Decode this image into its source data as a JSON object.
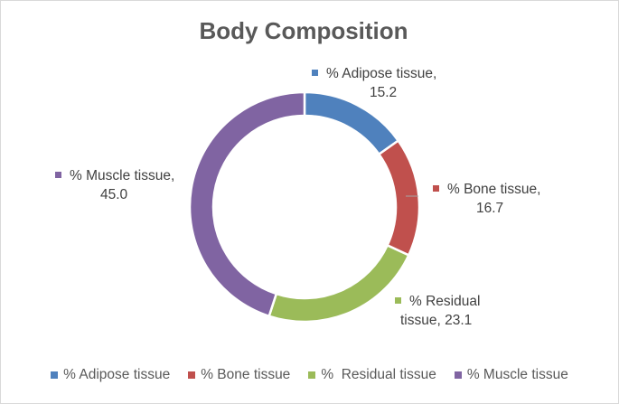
{
  "chart_data": {
    "type": "pie",
    "variant": "donut",
    "title": "Body Composition",
    "categories": [
      "% Adipose tissue",
      "% Bone tissue",
      "%  Residual tissue",
      "% Muscle tissue"
    ],
    "values": [
      15.2,
      16.7,
      23.1,
      45.0
    ],
    "value_labels": [
      "15.2",
      "16.7",
      "23.1",
      "45.0"
    ],
    "colors": [
      "#4f81bd",
      "#c0504d",
      "#9bbb59",
      "#8064a2"
    ],
    "data_labels": [
      {
        "line1": "% Adipose tissue,",
        "line2": "15.2"
      },
      {
        "line1": "% Bone tissue,",
        "line2": "16.7"
      },
      {
        "line1": "%  Residual",
        "line2": "tissue, 23.1"
      },
      {
        "line1": "% Muscle tissue,",
        "line2": "45.0"
      }
    ],
    "legend_position": "bottom"
  }
}
